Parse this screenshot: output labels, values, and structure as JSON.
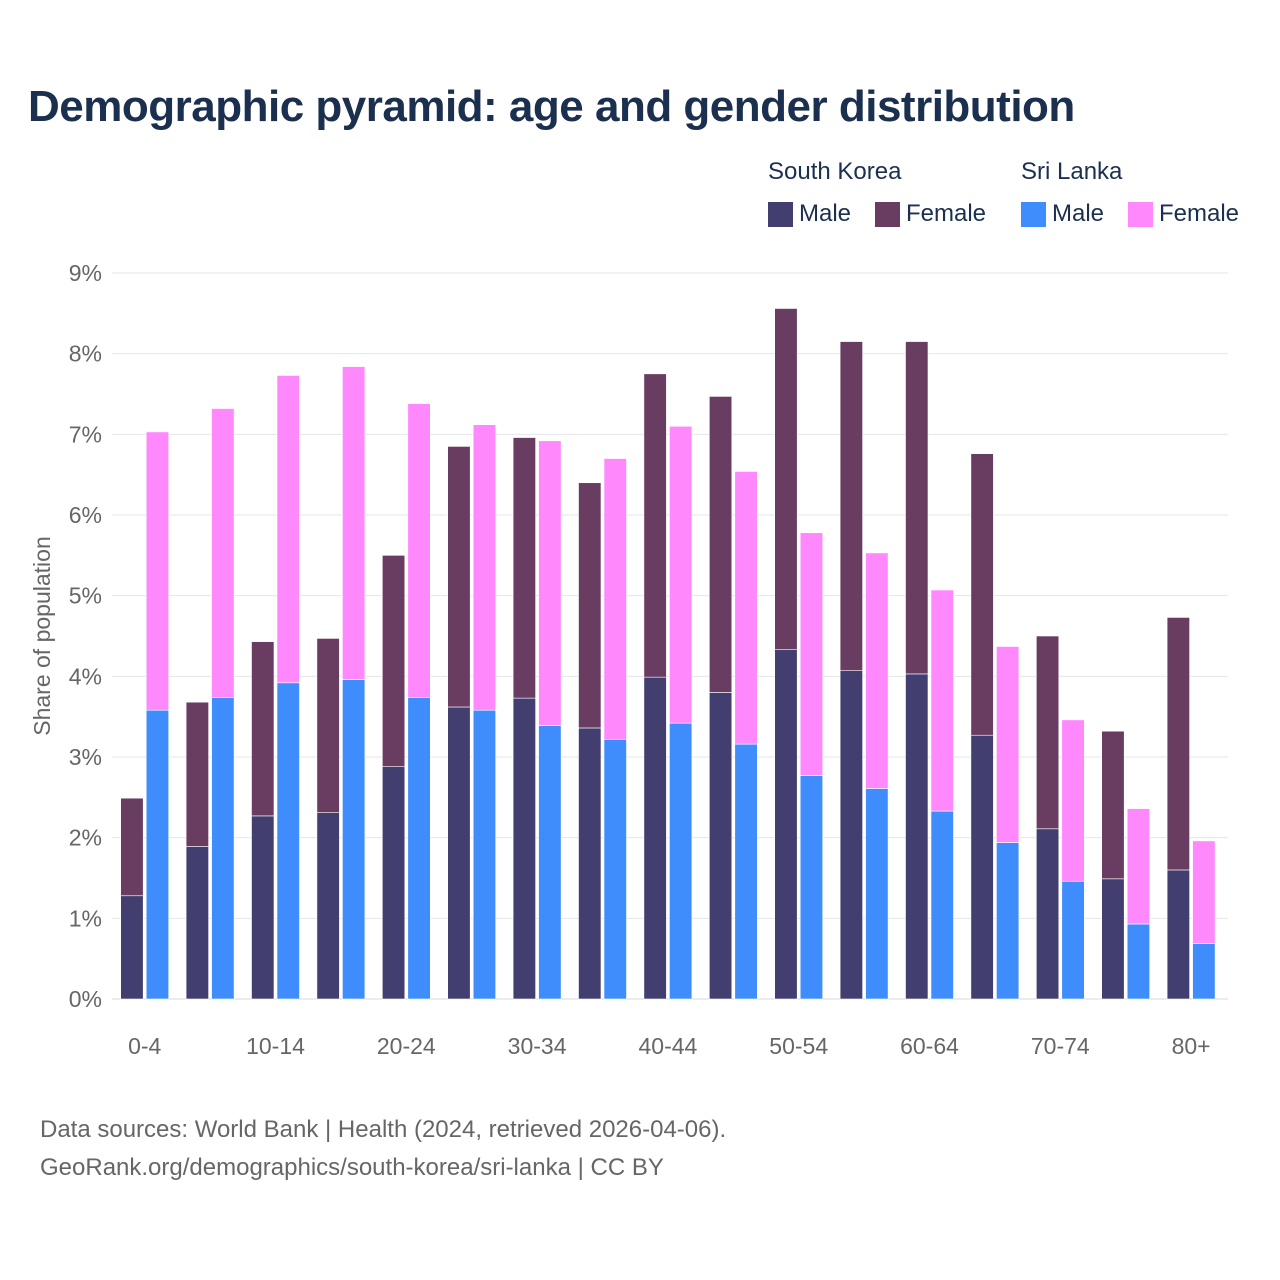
{
  "title": "Demographic pyramid: age and gender distribution",
  "legend": {
    "groups": [
      {
        "name": "South Korea",
        "male_label": "Male",
        "female_label": "Female",
        "male_color": "#423e6f",
        "female_color": "#683d61"
      },
      {
        "name": "Sri Lanka",
        "male_label": "Male",
        "female_label": "Female",
        "male_color": "#3f8cfd",
        "female_color": "#fe88fc"
      }
    ]
  },
  "source": {
    "line1": "Data sources: World Bank | Health (2024, retrieved 2026-04-06).",
    "line2": "GeoRank.org/demographics/south-korea/sri-lanka | CC BY"
  },
  "chart_data": {
    "type": "bar",
    "stacked": true,
    "ylabel": "Share of population",
    "ylim": [
      0,
      9
    ],
    "yticks": [
      "0%",
      "1%",
      "2%",
      "3%",
      "4%",
      "5%",
      "6%",
      "7%",
      "8%",
      "9%"
    ],
    "grid": true,
    "categories": [
      "0-4",
      "5-9",
      "10-14",
      "15-19",
      "20-24",
      "25-29",
      "30-34",
      "35-39",
      "40-44",
      "45-49",
      "50-54",
      "55-59",
      "60-64",
      "65-69",
      "70-74",
      "75-79",
      "80+"
    ],
    "xtick_labels": [
      "0-4",
      "",
      "10-14",
      "",
      "20-24",
      "",
      "30-34",
      "",
      "40-44",
      "",
      "50-54",
      "",
      "60-64",
      "",
      "70-74",
      "",
      "80+"
    ],
    "series": [
      {
        "name": "South Korea Male",
        "group": "South Korea",
        "values": [
          1.28,
          1.89,
          2.27,
          2.31,
          2.88,
          3.62,
          3.73,
          3.36,
          3.99,
          3.8,
          4.33,
          4.07,
          4.03,
          3.27,
          2.11,
          1.49,
          1.6
        ]
      },
      {
        "name": "South Korea Female",
        "group": "South Korea",
        "values": [
          1.21,
          1.79,
          2.16,
          2.16,
          2.62,
          3.23,
          3.23,
          3.04,
          3.76,
          3.67,
          4.23,
          4.08,
          4.12,
          3.49,
          2.39,
          1.83,
          3.13
        ]
      },
      {
        "name": "Sri Lanka Male",
        "group": "Sri Lanka",
        "values": [
          3.58,
          3.74,
          3.92,
          3.96,
          3.74,
          3.58,
          3.39,
          3.22,
          3.42,
          3.16,
          2.77,
          2.61,
          2.33,
          1.94,
          1.46,
          0.93,
          0.69
        ]
      },
      {
        "name": "Sri Lanka Female",
        "group": "Sri Lanka",
        "values": [
          3.45,
          3.58,
          3.81,
          3.88,
          3.64,
          3.54,
          3.53,
          3.48,
          3.68,
          3.38,
          3.01,
          2.92,
          2.74,
          2.43,
          2.0,
          1.43,
          1.27
        ]
      }
    ]
  }
}
